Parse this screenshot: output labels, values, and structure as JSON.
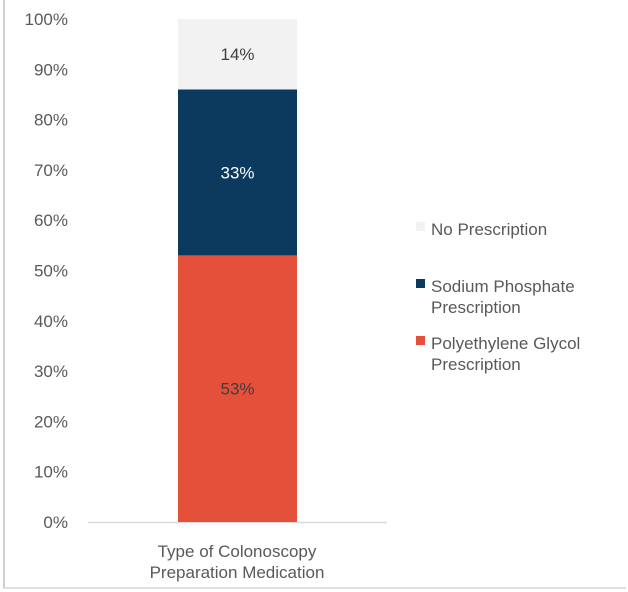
{
  "chart_data": {
    "type": "bar",
    "stacked": true,
    "percent_stacked": true,
    "categories": [
      "Type of Colonoscopy Preparation Medication"
    ],
    "category_label_lines": [
      "Type of Colonoscopy",
      "Preparation Medication"
    ],
    "series": [
      {
        "name": "Polyethylene Glycol Prescription",
        "legend_lines": [
          "Polyethylene Glycol",
          "Prescription"
        ],
        "values": [
          53
        ],
        "label": "53%",
        "color": "#E4503A",
        "label_color": "#404040"
      },
      {
        "name": "Sodium Phosphate Prescription",
        "legend_lines": [
          "Sodium Phosphate",
          "Prescription"
        ],
        "values": [
          33
        ],
        "label": "33%",
        "color": "#0B3A5E",
        "label_color": "#FFFFFF"
      },
      {
        "name": "No Prescription",
        "legend_lines": [
          "No Prescription"
        ],
        "values": [
          14
        ],
        "label": "14%",
        "color": "#F2F2F2",
        "label_color": "#404040"
      }
    ],
    "legend_order": [
      2,
      1,
      0
    ],
    "ylim": [
      0,
      100
    ],
    "yticks": [
      "0%",
      "10%",
      "20%",
      "30%",
      "40%",
      "50%",
      "60%",
      "70%",
      "80%",
      "90%",
      "100%"
    ],
    "grid": false,
    "legend_position": "right",
    "title": "",
    "xlabel": "",
    "ylabel": ""
  }
}
